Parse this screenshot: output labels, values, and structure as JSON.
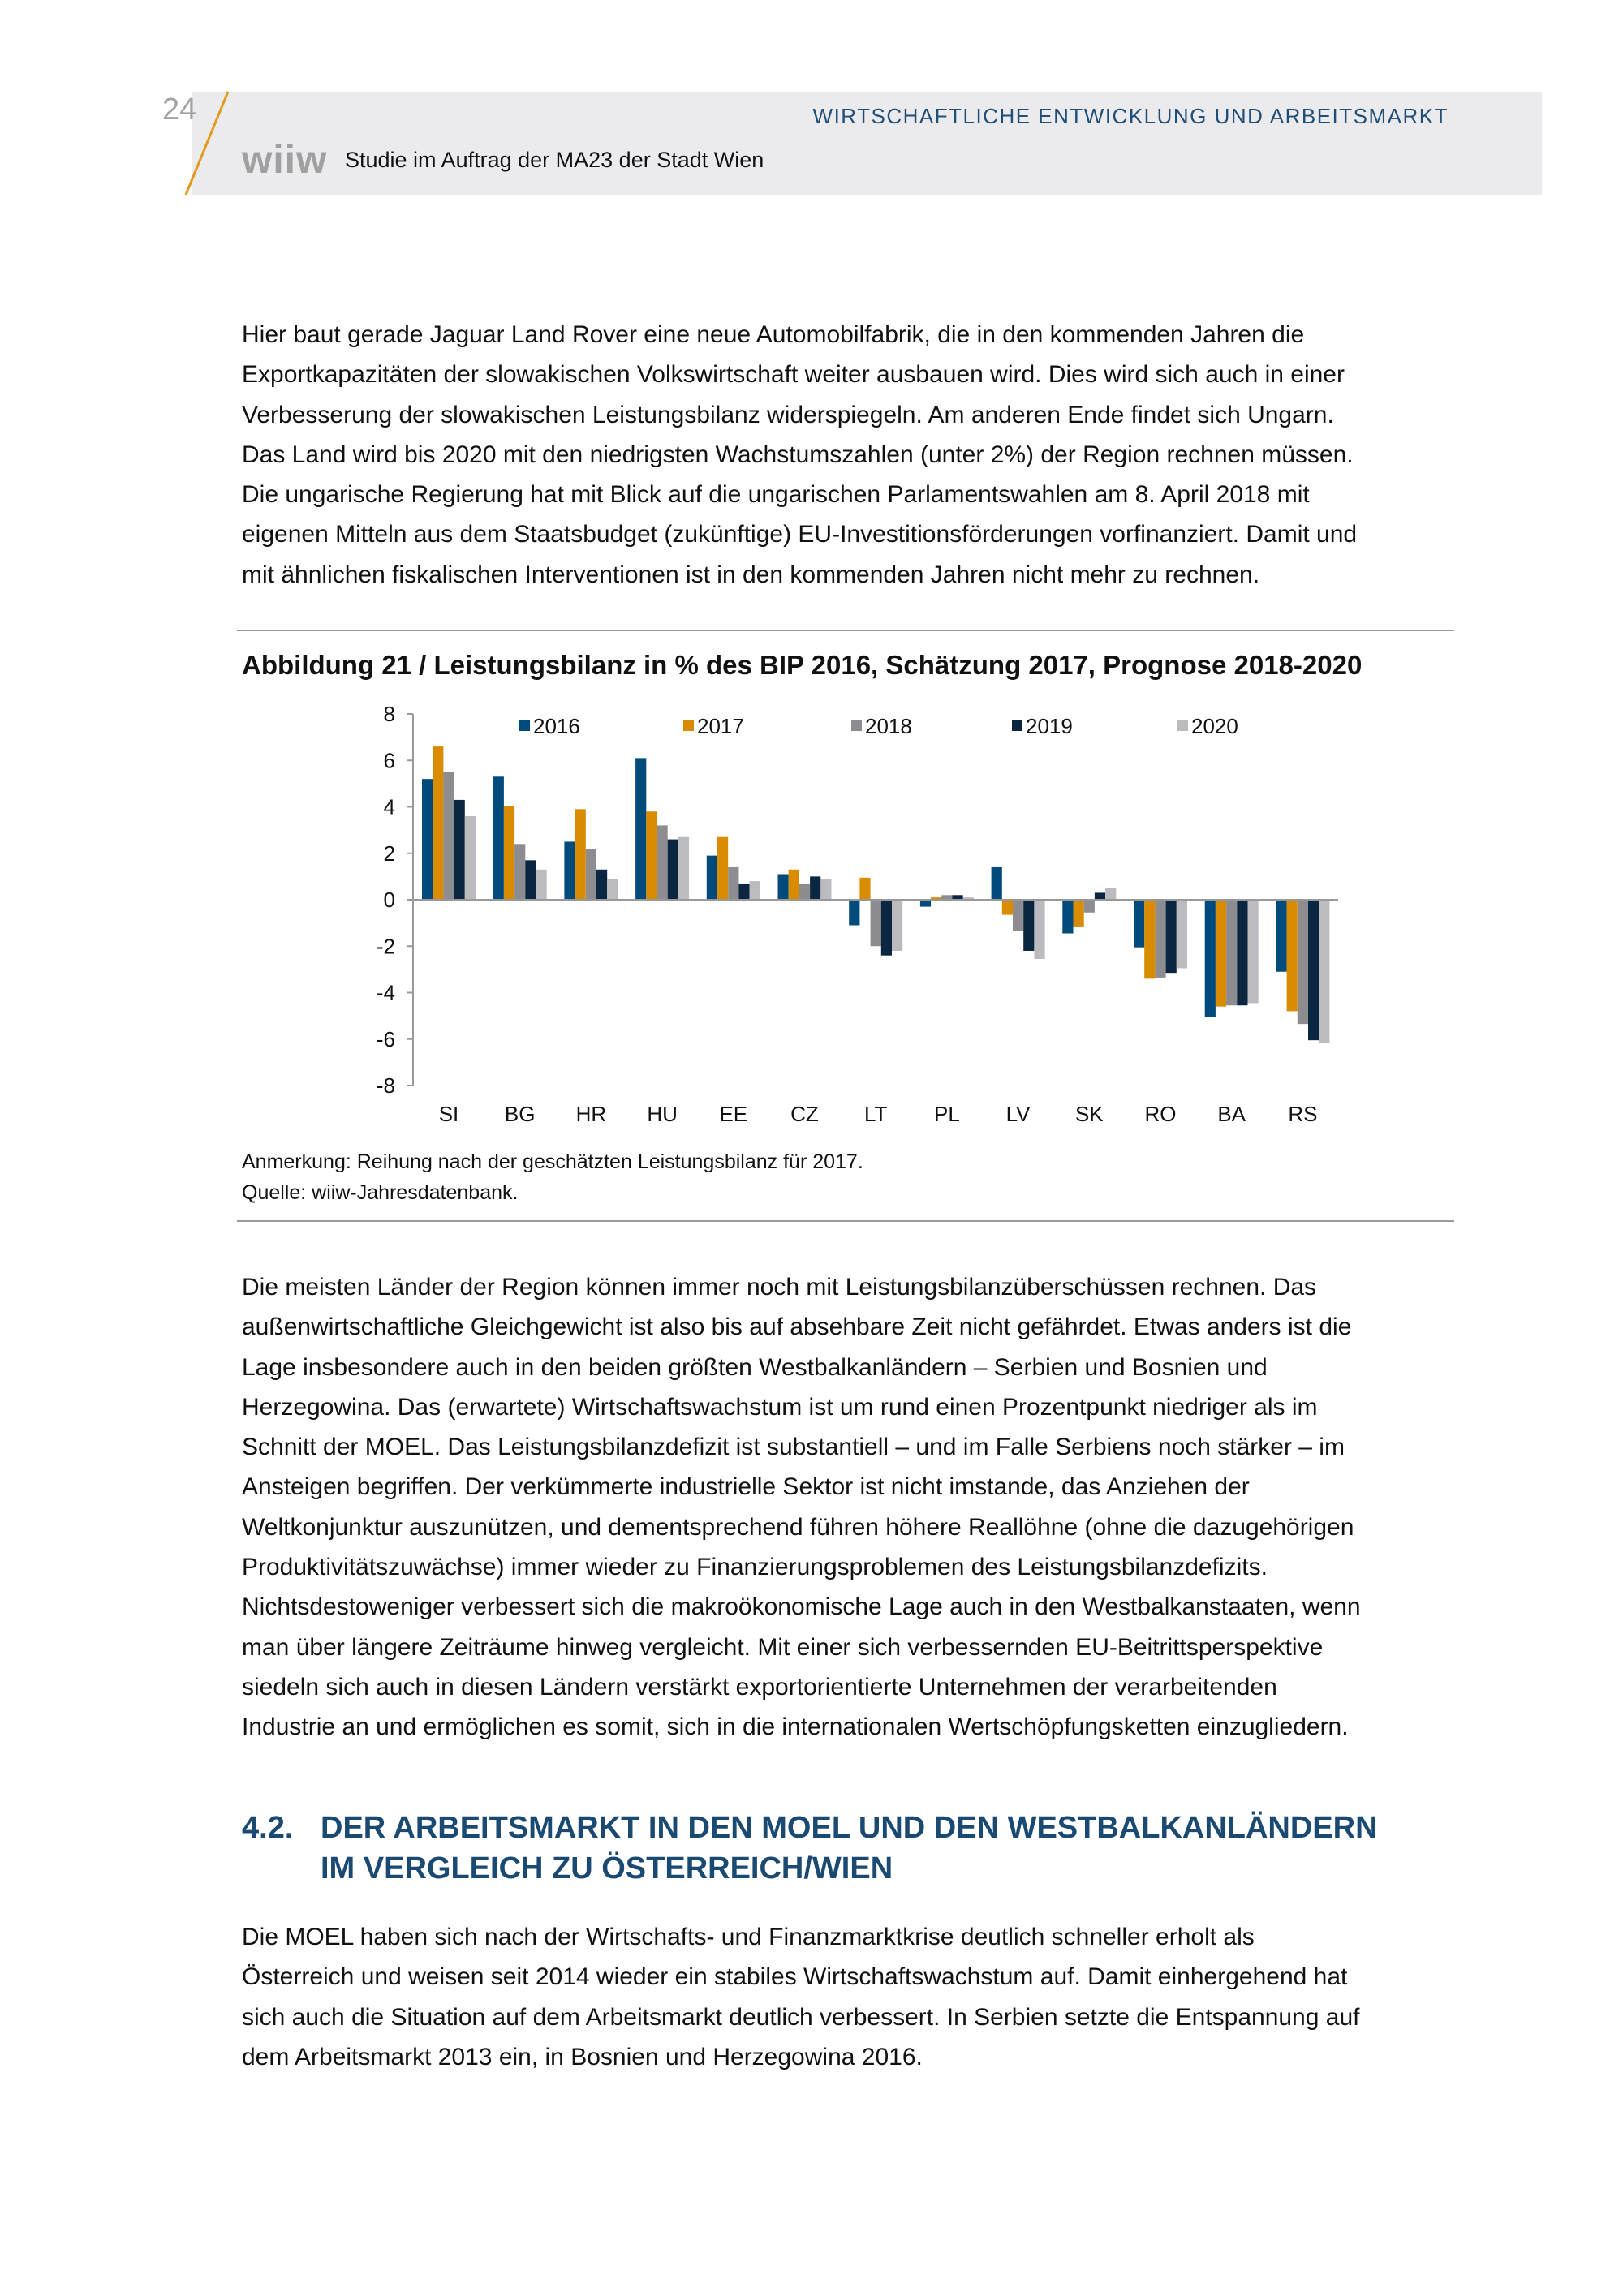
{
  "header": {
    "page_number": "24",
    "logo": "wiiw",
    "subtitle": "Studie im Auftrag der MA23 der Stadt Wien",
    "section_title": "WIRTSCHAFTLICHE ENTWICKLUNG UND ARBEITSMARKT",
    "accent_color": "#e09a1c",
    "band_color": "#ebebed"
  },
  "paragraph1": [
    "Hier baut gerade Jaguar Land Rover eine neue Automobilfabrik, die in den kommenden Jahren die",
    "Exportkapazitäten der slowakischen Volkswirtschaft weiter ausbauen wird. Dies wird sich auch in einer",
    "Verbesserung der slowakischen Leistungsbilanz widerspiegeln. Am anderen Ende findet sich Ungarn.",
    "Das Land wird bis 2020 mit den niedrigsten Wachstumszahlen (unter 2%) der Region rechnen müssen.",
    "Die ungarische Regierung  hat mit Blick auf die ungarischen Parlamentswahlen am 8. April 2018 mit",
    "eigenen Mitteln aus dem Staatsbudget (zukünftige) EU-Investitionsförderungen vorfinanziert. Damit und",
    "mit ähnlichen fiskalischen Interventionen ist in den kommenden Jahren nicht mehr zu rechnen."
  ],
  "figure": {
    "title": "Abbildung 21 / Leistungsbilanz in % des BIP 2016, Schätzung 2017, Prognose 2018-2020",
    "note": "Anmerkung: Reihung nach der geschätzten Leistungsbilanz für 2017.",
    "source": "Quelle: wiiw-Jahresdatenbank."
  },
  "chart_data": {
    "type": "bar",
    "title": "Abbildung 21 / Leistungsbilanz in % des BIP 2016, Schätzung 2017, Prognose 2018-2020",
    "categories": [
      "SI",
      "BG",
      "HR",
      "HU",
      "EE",
      "CZ",
      "LT",
      "PL",
      "LV",
      "SK",
      "RO",
      "BA",
      "RS"
    ],
    "ylim": [
      -8,
      8
    ],
    "yticks": [
      "8",
      "6",
      "4",
      "2",
      "0",
      "-2",
      "-4",
      "-6",
      "-8"
    ],
    "ytick_values": [
      8,
      6,
      4,
      2,
      0,
      -2,
      -4,
      -6,
      -8
    ],
    "grid": false,
    "legend_position": "top",
    "series": [
      {
        "name": "2016",
        "color": "#004a7c",
        "values": [
          5.2,
          5.3,
          2.5,
          6.1,
          1.9,
          1.1,
          -1.1,
          -0.3,
          1.4,
          -1.45,
          -2.05,
          -5.05,
          -3.1
        ]
      },
      {
        "name": "2017",
        "color": "#d98c00",
        "values": [
          6.6,
          4.05,
          3.9,
          3.8,
          2.7,
          1.3,
          0.95,
          0.1,
          -0.65,
          -1.15,
          -3.4,
          -4.6,
          -4.8
        ]
      },
      {
        "name": "2018",
        "color": "#8c8c91",
        "values": [
          5.5,
          2.4,
          2.2,
          3.2,
          1.4,
          0.7,
          -2.0,
          0.2,
          -1.35,
          -0.55,
          -3.35,
          -4.55,
          -5.35
        ]
      },
      {
        "name": "2019",
        "color": "#0a2640",
        "values": [
          4.3,
          1.7,
          1.3,
          2.6,
          0.7,
          1.0,
          -2.4,
          0.2,
          -2.2,
          0.3,
          -3.15,
          -4.55,
          -6.05
        ]
      },
      {
        "name": "2020",
        "color": "#bcbcc0",
        "values": [
          3.6,
          1.3,
          0.9,
          2.7,
          0.8,
          0.9,
          -2.2,
          0.1,
          -2.55,
          0.5,
          -2.95,
          -4.45,
          -6.15
        ]
      }
    ]
  },
  "paragraph2": [
    "Die meisten Länder der Region können immer noch mit Leistungsbilanzüberschüssen rechnen. Das",
    "außenwirtschaftliche Gleichgewicht ist also bis auf absehbare Zeit nicht gefährdet. Etwas anders ist die",
    "Lage insbesondere auch in den beiden größten Westbalkanländern – Serbien und Bosnien und",
    "Herzegowina. Das (erwartete) Wirtschaftswachstum ist um rund einen Prozentpunkt niedriger als im",
    "Schnitt der MOEL. Das Leistungsbilanzdefizit ist substantiell – und im Falle Serbiens noch stärker – im",
    "Ansteigen begriffen. Der verkümmerte industrielle Sektor ist nicht imstande, das Anziehen der",
    "Weltkonjunktur auszunützen, und dementsprechend führen höhere Reallöhne (ohne die dazugehörigen",
    "Produktivitätszuwächse) immer wieder zu Finanzierungsproblemen des Leistungsbilanzdefizits.",
    "Nichtsdestoweniger verbessert sich die makroökonomische Lage auch in den Westbalkanstaaten, wenn",
    "man über längere Zeiträume hinweg vergleicht. Mit einer sich verbessernden EU-Beitrittsperspektive",
    "siedeln sich auch in diesen Ländern verstärkt exportorientierte Unternehmen der verarbeitenden",
    "Industrie an und ermöglichen es somit, sich in die internationalen Wertschöpfungsketten einzugliedern."
  ],
  "heading": {
    "number": "4.2.",
    "line1": "DER ARBEITSMARKT IN DEN MOEL UND DEN WESTBALKANLÄNDERN",
    "line2": "IM VERGLEICH ZU ÖSTERREICH/WIEN",
    "color": "#1a4a72"
  },
  "paragraph3": [
    "Die MOEL haben sich nach der Wirtschafts- und Finanzmarktkrise deutlich schneller erholt als",
    "Österreich und weisen seit 2014 wieder ein stabiles Wirtschaftswachstum auf. Damit einhergehend hat",
    "sich auch die Situation auf dem Arbeitsmarkt deutlich verbessert. In Serbien setzte die Entspannung auf",
    "dem Arbeitsmarkt 2013 ein, in Bosnien und Herzegowina 2016."
  ]
}
